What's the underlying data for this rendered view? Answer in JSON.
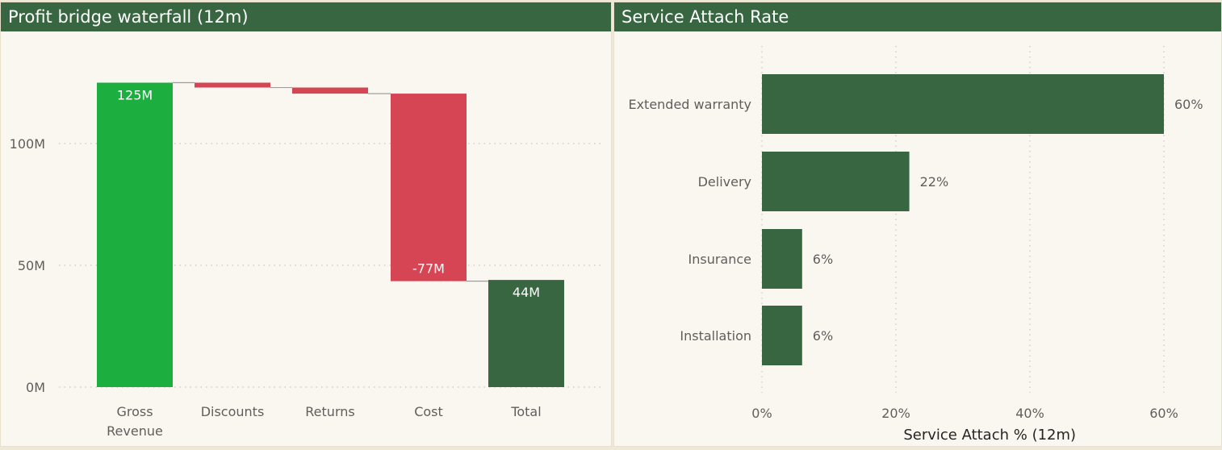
{
  "colors": {
    "header_bg": "#386641",
    "increase": "#1caf40",
    "decrease": "#d54553",
    "total": "#386641",
    "bar": "#386641",
    "axis_text": "#605e5c",
    "grid": "#c8c6c4"
  },
  "chart_data": [
    {
      "type": "waterfall",
      "title": "Profit bridge waterfall (12m)",
      "categories": [
        [
          "Gross",
          "Revenue"
        ],
        [
          "Discounts"
        ],
        [
          "Returns"
        ],
        [
          "Cost"
        ],
        [
          "Total"
        ]
      ],
      "values": [
        125,
        -2,
        -2.5,
        -77,
        44
      ],
      "kinds": [
        "increase",
        "decrease",
        "decrease",
        "decrease",
        "total"
      ],
      "data_labels": [
        "125M",
        "",
        "",
        "-77M",
        "44M"
      ],
      "y_ticks": [
        0,
        50,
        100
      ],
      "y_tick_labels": [
        "0M",
        "50M",
        "100M"
      ],
      "ylim": [
        0,
        140
      ],
      "grid": true
    },
    {
      "type": "bar",
      "orientation": "horizontal",
      "title": "Service Attach Rate",
      "categories": [
        "Extended warranty",
        "Delivery",
        "Insurance",
        "Installation"
      ],
      "values": [
        60,
        22,
        6,
        6
      ],
      "data_labels": [
        "60%",
        "22%",
        "6%",
        "6%"
      ],
      "x_ticks": [
        0,
        20,
        40,
        60
      ],
      "x_tick_labels": [
        "0%",
        "20%",
        "40%",
        "60%"
      ],
      "xlim": [
        0,
        68
      ],
      "xlabel": "Service Attach % (12m)",
      "grid": true
    }
  ]
}
